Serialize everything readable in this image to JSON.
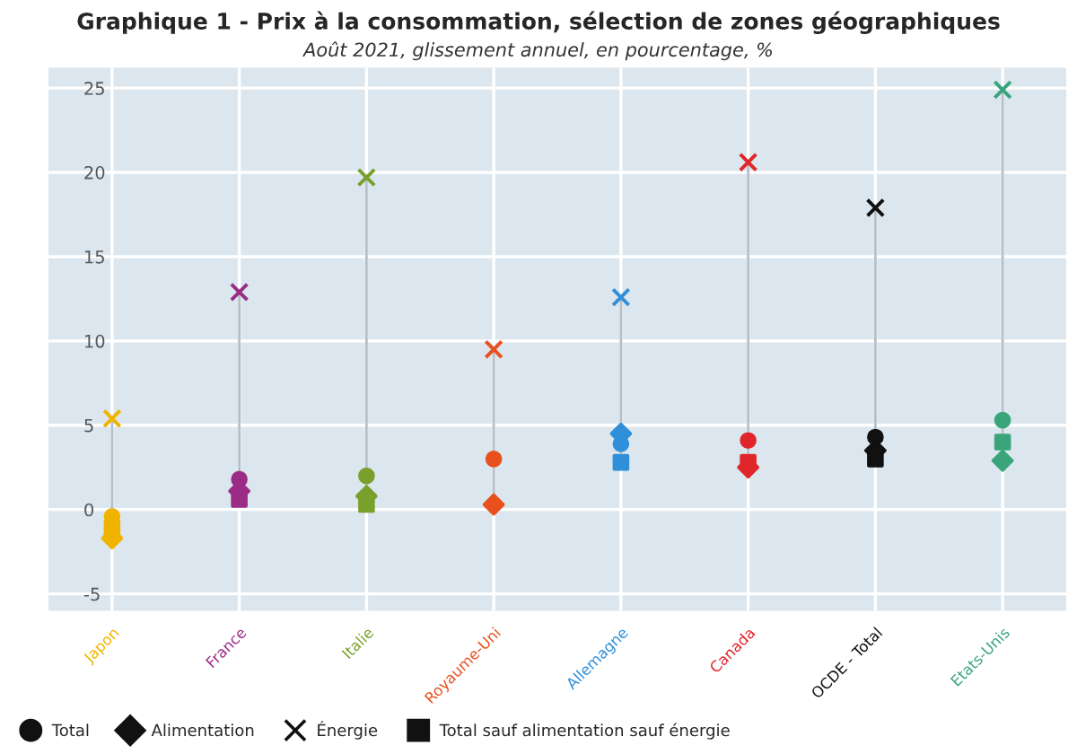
{
  "chart_data": {
    "type": "scatter",
    "title": "Graphique 1 - Prix à la consommation, sélection de zones géographiques",
    "subtitle": "Août 2021, glissement annuel, en pourcentage, %",
    "categories": [
      "Japon",
      "France",
      "Italie",
      "Royaume-Uni",
      "Allemagne",
      "Canada",
      "OCDE - Total",
      "Etats-Unis"
    ],
    "series": [
      {
        "name": "Total",
        "marker": "circle",
        "color": "#111111",
        "colors": [
          "#f0b400",
          "#9b2d86",
          "#7aa02c",
          "#e8501e",
          "#2f8fd8",
          "#e0262b",
          "#111111",
          "#3aa57a"
        ],
        "values": [
          -0.4,
          1.8,
          2.0,
          3.0,
          3.9,
          4.1,
          4.3,
          5.3
        ]
      },
      {
        "name": "Alimentation",
        "marker": "diamond",
        "color": "#111111",
        "colors": [
          "#f0b400",
          "#9b2d86",
          "#7aa02c",
          "#e8501e",
          "#2f8fd8",
          "#e0262b",
          "#111111",
          "#3aa57a"
        ],
        "values": [
          -1.7,
          1.1,
          0.8,
          0.3,
          4.5,
          2.5,
          3.5,
          2.9
        ]
      },
      {
        "name": "Énergie",
        "marker": "cross",
        "color": "#111111",
        "colors": [
          "#f0b400",
          "#9b2d86",
          "#7aa02c",
          "#e8501e",
          "#2f8fd8",
          "#e0262b",
          "#111111",
          "#3aa57a"
        ],
        "values": [
          5.4,
          12.9,
          19.7,
          9.5,
          12.6,
          20.6,
          17.9,
          24.9
        ]
      },
      {
        "name": "Total sauf alimentation sauf énergie",
        "marker": "square",
        "color": "#111111",
        "colors": [
          "#f0b400",
          "#9b2d86",
          "#7aa02c",
          "#e8501e",
          "#2f8fd8",
          "#e0262b",
          "#111111",
          "#3aa57a"
        ],
        "values": [
          -1.1,
          0.6,
          0.3,
          null,
          2.8,
          2.8,
          3.0,
          4.0
        ]
      }
    ],
    "ylim": [
      -6,
      26.2
    ],
    "yticks": [
      -5,
      0,
      5,
      10,
      15,
      20,
      25
    ],
    "grid": true,
    "legend": "bottom left"
  }
}
